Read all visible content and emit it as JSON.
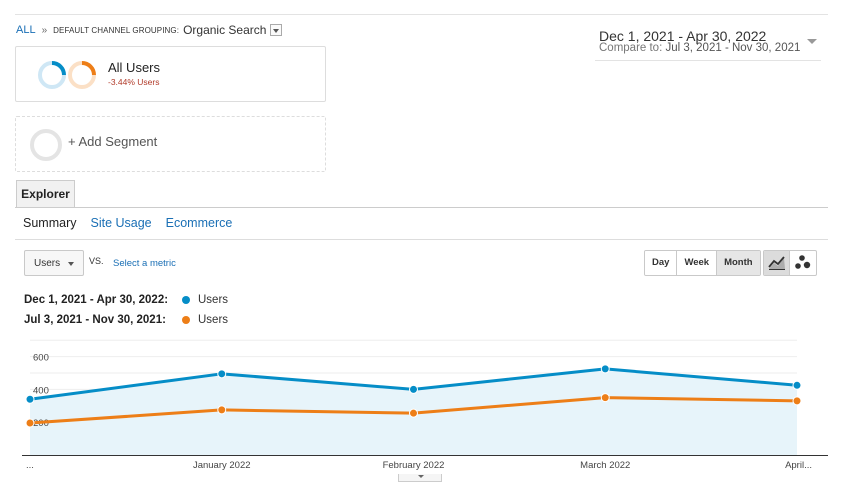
{
  "breadcrumb": {
    "all": "ALL",
    "sep": "»",
    "dimension": "DEFAULT CHANNEL GROUPING:",
    "value": "Organic Search"
  },
  "date_range": {
    "main": "Dec 1, 2021 - Apr 30, 2022",
    "compare_label": "Compare to:",
    "compare_value": "Jul 3, 2021 - Nov 30, 2021"
  },
  "segment": {
    "title": "All Users",
    "change": "-3.44% Users"
  },
  "add_segment": "+ Add Segment",
  "tabs": {
    "explorer": "Explorer"
  },
  "subtabs": [
    "Summary",
    "Site Usage",
    "Ecommerce"
  ],
  "metric": {
    "selected": "Users",
    "vs": "VS.",
    "select_label": "Select a metric"
  },
  "granularity": [
    "Day",
    "Week",
    "Month"
  ],
  "legend": [
    {
      "range": "Dec 1, 2021 - Apr 30, 2022:",
      "name": "Users",
      "color": "#058dc7"
    },
    {
      "range": "Jul 3, 2021 - Nov 30, 2021:",
      "name": "Users",
      "color": "#ed7e17"
    }
  ],
  "chart_data": {
    "type": "line",
    "x": [
      "...",
      "January 2022",
      "February 2022",
      "March 2022",
      "April..."
    ],
    "series": [
      {
        "name": "Users",
        "values": [
          340,
          495,
          400,
          525,
          425
        ],
        "color": "#058dc7",
        "fill": "#e7f4fa"
      },
      {
        "name": "Users",
        "values": [
          195,
          275,
          255,
          350,
          330
        ],
        "color": "#ed7e17"
      }
    ],
    "yticks": [
      200,
      400,
      600
    ],
    "ylim": [
      0,
      750
    ],
    "grid": true
  }
}
